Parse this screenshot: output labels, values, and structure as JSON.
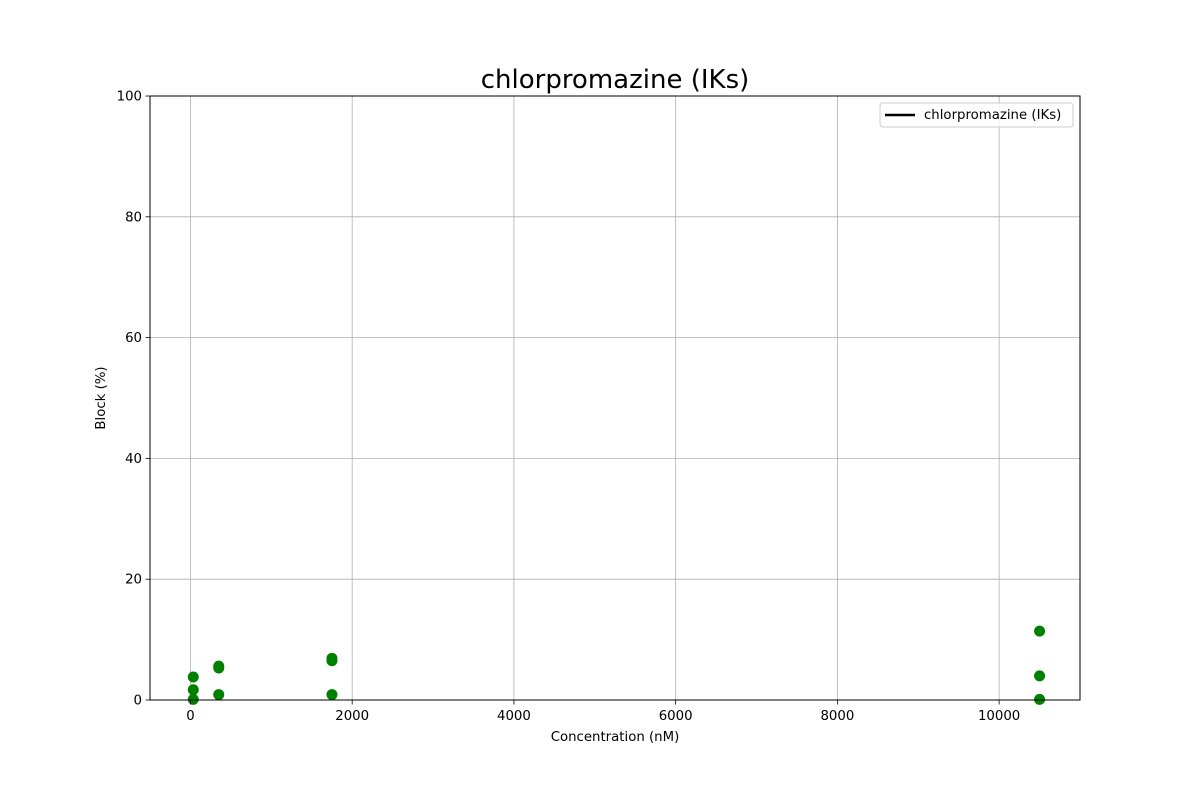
{
  "chart_data": {
    "type": "scatter",
    "title": "chlorpromazine (IKs)",
    "xlabel": "Concentration (nM)",
    "ylabel": "Block (%)",
    "xlim": [
      -500,
      11000
    ],
    "ylim": [
      0,
      100
    ],
    "x_ticks": [
      0,
      2000,
      4000,
      6000,
      8000,
      10000
    ],
    "y_ticks": [
      0,
      20,
      40,
      60,
      80,
      100
    ],
    "grid": true,
    "legend": {
      "placement": "top-right",
      "entries": [
        {
          "label": "chlorpromazine (IKs)",
          "marker": "line",
          "color": "#000000"
        }
      ]
    },
    "series": [
      {
        "color": "#008000",
        "points": [
          {
            "x": 35,
            "y": 3.8
          },
          {
            "x": 35,
            "y": 1.7
          },
          {
            "x": 35,
            "y": 0.1
          },
          {
            "x": 350,
            "y": 5.6
          },
          {
            "x": 350,
            "y": 5.3
          },
          {
            "x": 350,
            "y": 0.9
          },
          {
            "x": 1750,
            "y": 6.9
          },
          {
            "x": 1750,
            "y": 6.5
          },
          {
            "x": 1750,
            "y": 0.9
          },
          {
            "x": 10500,
            "y": 11.4
          },
          {
            "x": 10500,
            "y": 4.0
          },
          {
            "x": 10500,
            "y": 0.1
          }
        ]
      }
    ]
  }
}
